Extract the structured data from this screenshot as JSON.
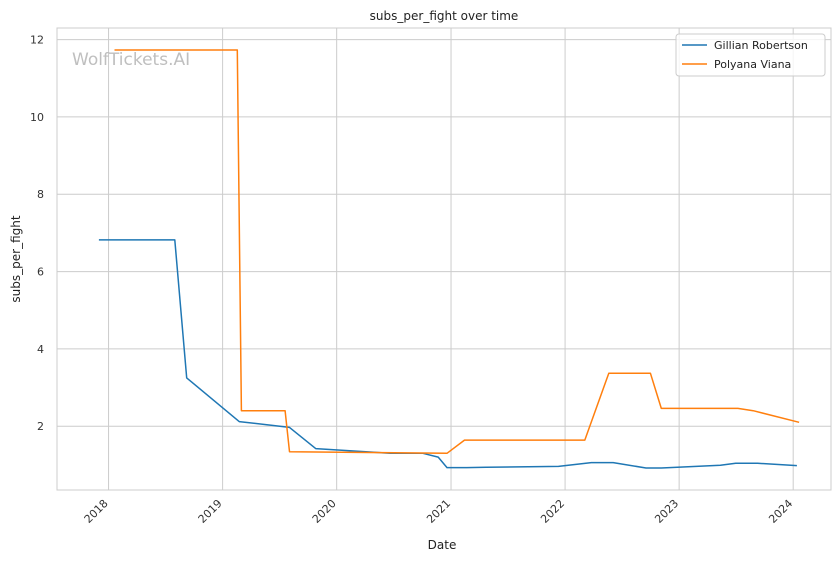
{
  "chart_data": {
    "type": "line",
    "title": "subs_per_fight over time",
    "xlabel": "Date",
    "ylabel": "subs_per_fight",
    "watermark": "WolfTickets.AI",
    "x_axis": "date",
    "xlim": [
      "2017-07-20",
      "2024-05-01"
    ],
    "ylim": [
      0.35,
      12.3
    ],
    "x_ticks": [
      "2018",
      "2019",
      "2020",
      "2021",
      "2022",
      "2023",
      "2024"
    ],
    "y_ticks": [
      2,
      4,
      6,
      8,
      10,
      12
    ],
    "grid": true,
    "legend_position": "top-right",
    "series": [
      {
        "name": "Gillian Robertson",
        "color": "#1f77b4",
        "points": [
          {
            "x": "2017-12-01",
            "y": 6.82
          },
          {
            "x": "2018-08-01",
            "y": 6.82
          },
          {
            "x": "2018-09-08",
            "y": 3.25
          },
          {
            "x": "2019-02-23",
            "y": 2.12
          },
          {
            "x": "2019-08-03",
            "y": 1.97
          },
          {
            "x": "2019-10-26",
            "y": 1.42
          },
          {
            "x": "2020-06-20",
            "y": 1.3
          },
          {
            "x": "2020-10-03",
            "y": 1.3
          },
          {
            "x": "2020-11-21",
            "y": 1.2
          },
          {
            "x": "2020-12-19",
            "y": 0.93
          },
          {
            "x": "2021-02-20",
            "y": 0.93
          },
          {
            "x": "2021-04-24",
            "y": 0.94
          },
          {
            "x": "2021-12-11",
            "y": 0.96
          },
          {
            "x": "2022-03-26",
            "y": 1.06
          },
          {
            "x": "2022-06-04",
            "y": 1.06
          },
          {
            "x": "2022-09-17",
            "y": 0.92
          },
          {
            "x": "2022-11-05",
            "y": 0.92
          },
          {
            "x": "2023-05-13",
            "y": 0.99
          },
          {
            "x": "2023-07-01",
            "y": 1.04
          },
          {
            "x": "2023-09-09",
            "y": 1.04
          },
          {
            "x": "2024-01-13",
            "y": 0.98
          }
        ]
      },
      {
        "name": "Polyana Viana",
        "color": "#ff7f0e",
        "points": [
          {
            "x": "2018-01-20",
            "y": 11.73
          },
          {
            "x": "2019-02-17",
            "y": 11.73
          },
          {
            "x": "2019-03-02",
            "y": 2.4
          },
          {
            "x": "2019-07-20",
            "y": 2.4
          },
          {
            "x": "2019-08-03",
            "y": 1.34
          },
          {
            "x": "2020-12-19",
            "y": 1.3
          },
          {
            "x": "2021-02-13",
            "y": 1.64
          },
          {
            "x": "2022-03-05",
            "y": 1.64
          },
          {
            "x": "2022-05-21",
            "y": 3.37
          },
          {
            "x": "2022-10-01",
            "y": 3.37
          },
          {
            "x": "2022-11-05",
            "y": 2.46
          },
          {
            "x": "2023-07-08",
            "y": 2.46
          },
          {
            "x": "2023-08-26",
            "y": 2.4
          },
          {
            "x": "2024-01-20",
            "y": 2.1
          }
        ]
      }
    ]
  }
}
